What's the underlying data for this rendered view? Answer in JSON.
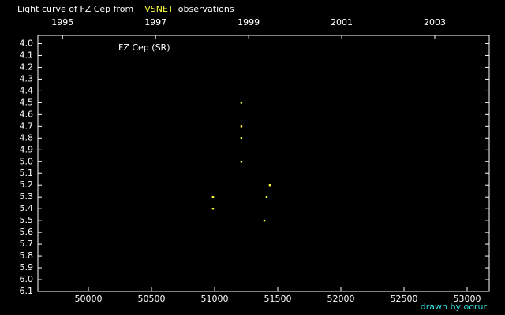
{
  "chart_data": {
    "type": "scatter",
    "title": "Light curve of FZ Cep from",
    "title_source": "VSNET",
    "title_suffix": "observations",
    "annotation": "FZ Cep (SR)",
    "credit": "drawn by ooruri",
    "series": [
      {
        "name": "FZ Cep",
        "color": "#ffff40",
        "x": [
          51212,
          51212,
          51212,
          51212,
          51437,
          50987,
          50987,
          51412,
          50987,
          51394
        ],
        "values": [
          4.5,
          4.7,
          4.8,
          5.0,
          5.2,
          5.3,
          5.3,
          5.3,
          5.4,
          5.5
        ]
      }
    ],
    "xlim": [
      49600,
      53175
    ],
    "xticks": [
      50000,
      50500,
      51000,
      51500,
      52000,
      52500,
      53000
    ],
    "x2lim": [
      1994.47,
      2004.17
    ],
    "x2ticks": [
      1995,
      1997,
      1999,
      2001,
      2003
    ],
    "ylim": [
      6.1,
      3.93
    ],
    "yticks": [
      {
        "value": 4,
        "label": "4.0"
      },
      4.1,
      4.2,
      4.3,
      4.4,
      4.5,
      4.6,
      4.7,
      4.8,
      4.9,
      {
        "value": 5,
        "label": "5.0"
      },
      5.1,
      5.2,
      5.3,
      5.4,
      5.5,
      5.6,
      5.7,
      5.8,
      5.9,
      {
        "value": 6,
        "label": "6.0"
      },
      6.1
    ]
  }
}
